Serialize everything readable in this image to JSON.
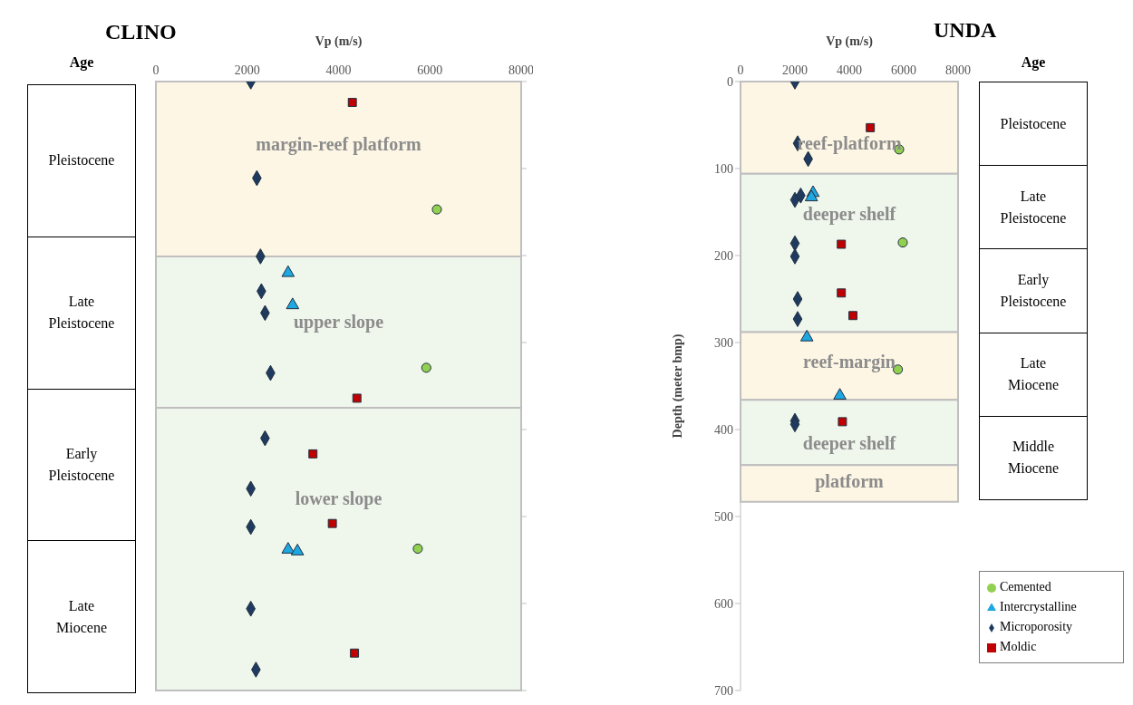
{
  "chart_data": [
    {
      "type": "scatter",
      "title": "CLINO",
      "xlabel": "Vp (m/s)",
      "xlim": [
        0,
        8000
      ],
      "xticks": [
        0,
        2000,
        4000,
        6000,
        8000
      ],
      "ylim": [
        700,
        0
      ],
      "yticks": [
        0,
        100,
        200,
        300,
        400,
        500,
        600,
        700
      ],
      "tick_labels": "x",
      "series": [
        {
          "color": "#92d050",
          "marker": "circle",
          "x": [
            6154,
            5922,
            5736
          ],
          "values": [
            147,
            329,
            537
          ]
        },
        {
          "color": "#1ea7e1",
          "marker": "triangle",
          "x": [
            2895,
            2994,
            2895,
            3100
          ],
          "values": [
            220,
            257,
            538,
            540
          ]
        },
        {
          "color": "#1f3a5f",
          "marker": "diamond",
          "x": [
            2078,
            2211,
            2290,
            2310,
            2390,
            2510,
            2390,
            2078,
            2078,
            2078,
            2191
          ],
          "values": [
            0,
            111,
            201,
            241,
            266,
            335,
            410,
            468,
            512,
            606,
            676
          ]
        },
        {
          "color": "#c00000",
          "marker": "square",
          "x": [
            4302,
            4402,
            3439,
            3864,
            4349
          ],
          "values": [
            24,
            364,
            428,
            508,
            657
          ]
        }
      ],
      "bands": [
        {
          "axis": "y",
          "from": 0,
          "to": 201,
          "label": "margin-reef platform",
          "color": "#fdf6e4"
        },
        {
          "axis": "y",
          "from": 201,
          "to": 375,
          "label": "upper slope",
          "color": "#eff6ec"
        },
        {
          "axis": "y",
          "from": 375,
          "to": 700,
          "label": "lower slope",
          "color": "#eff6ec"
        }
      ],
      "annotations": [
        "Age",
        "Pleistocene",
        "Late Pleistocene",
        "Early Pleistocene",
        "Late Miocene"
      ]
    },
    {
      "type": "scatter",
      "title": "UNDA",
      "xlabel": "Vp (m/s)",
      "ylabel": "Depth (meter bmp)",
      "xlim": [
        0,
        8000
      ],
      "xticks": [
        0,
        2000,
        4000,
        6000,
        8000
      ],
      "ylim": [
        700,
        0
      ],
      "yticks": [
        0,
        100,
        200,
        300,
        400,
        500,
        600,
        700
      ],
      "legend": "bottom right",
      "series": [
        {
          "name": "Cemented",
          "color": "#92d050",
          "marker": "circle",
          "x": [
            5833,
            5967,
            5787
          ],
          "values": [
            78,
            185,
            331
          ]
        },
        {
          "name": "Intercrystalline",
          "color": "#1ea7e1",
          "marker": "triangle",
          "x": [
            2667,
            2607,
            2440,
            3653
          ],
          "values": [
            128,
            133,
            294,
            361
          ]
        },
        {
          "name": "Microporosity",
          "color": "#1f3a5f",
          "marker": "diamond",
          "x": [
            2000,
            2100,
            2487,
            2000,
            2213,
            2000,
            2000,
            2100,
            2100,
            2000,
            2000
          ],
          "values": [
            0,
            71,
            89,
            136,
            131,
            186,
            201,
            250,
            273,
            390,
            394
          ]
        },
        {
          "name": "Moldic",
          "color": "#c00000",
          "marker": "square",
          "x": [
            4773,
            3707,
            3707,
            4133,
            3747
          ],
          "values": [
            53,
            187,
            243,
            269,
            391
          ]
        }
      ],
      "bands": [
        {
          "axis": "y",
          "from": 0,
          "to": 106,
          "label": "reef-platform",
          "color": "#fdf6e4"
        },
        {
          "axis": "y",
          "from": 106,
          "to": 288,
          "label": "deeper shelf",
          "color": "#eff6ec"
        },
        {
          "axis": "y",
          "from": 288,
          "to": 366,
          "label": "reef-margin",
          "color": "#fdf6e4"
        },
        {
          "axis": "y",
          "from": 366,
          "to": 441,
          "label": "deeper shelf",
          "color": "#eff6ec"
        },
        {
          "axis": "y",
          "from": 441,
          "to": 483,
          "label": "platform",
          "color": "#fdf6e4"
        }
      ],
      "annotations": [
        "Age",
        "Pleistocene",
        "Late Pleistocene",
        "Early Pleistocene",
        "Late Miocene",
        "Middle Miocene"
      ]
    }
  ]
}
